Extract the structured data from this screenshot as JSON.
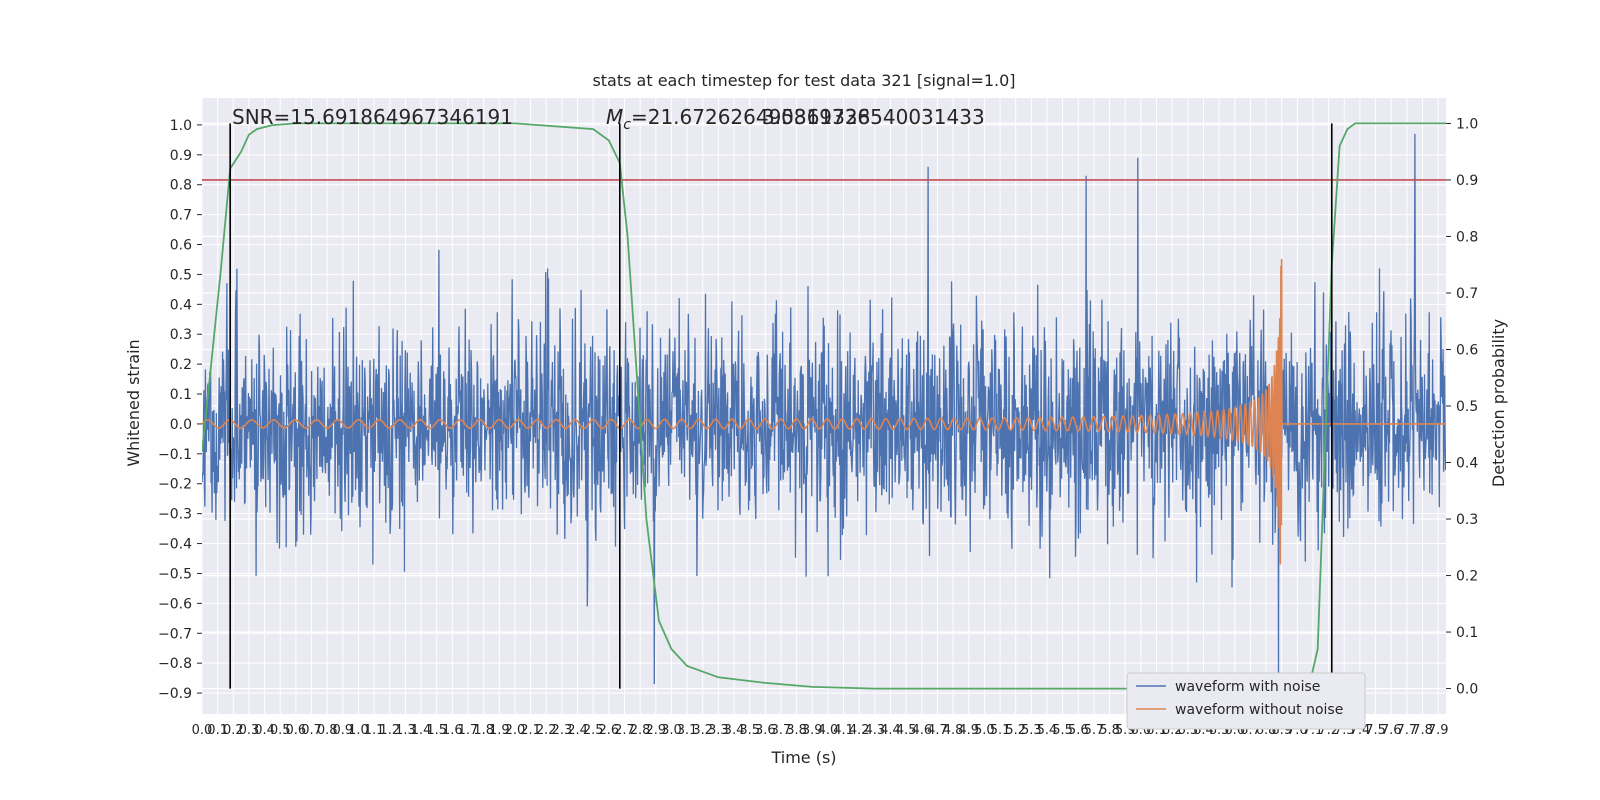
{
  "chart_data": {
    "type": "line",
    "title": "stats at each timestep for test data 321 [signal=1.0]",
    "xlabel": "Time (s)",
    "ylabel": "Whitened strain",
    "y2label": "Detection probability",
    "xlim": [
      0.0,
      7.95
    ],
    "ylim": [
      -0.97,
      1.09
    ],
    "y2lim": [
      -0.045,
      1.045
    ],
    "grid": true,
    "legend_position": "lower-right",
    "annotations": {
      "snr": "SNR=15.691864967346191",
      "mc": "M",
      "mc_sub": "c",
      "mc_value": "=21.672626495361328",
      "overlap": "3.0819736540031433"
    },
    "x_ticks": [
      "0.0",
      "0.1",
      "0.2",
      "0.3",
      "0.4",
      "0.5",
      "0.6",
      "0.7",
      "0.8",
      "0.9",
      "1.0",
      "1.1",
      "1.2",
      "1.3",
      "1.4",
      "1.5",
      "1.6",
      "1.7",
      "1.8",
      "1.9",
      "2.0",
      "2.1",
      "2.2",
      "2.3",
      "2.4",
      "2.5",
      "2.6",
      "2.7",
      "2.8",
      "2.9",
      "3.0",
      "3.1",
      "3.2",
      "3.3",
      "3.4",
      "3.5",
      "3.6",
      "3.7",
      "3.8",
      "3.9",
      "4.0",
      "4.1",
      "4.2",
      "4.3",
      "4.4",
      "4.5",
      "4.6",
      "4.7",
      "4.8",
      "4.9",
      "5.0",
      "5.1",
      "5.2",
      "5.3",
      "5.4",
      "5.5",
      "5.6",
      "5.7",
      "5.8",
      "5.9",
      "6.0",
      "6.1",
      "6.2",
      "6.3",
      "6.4",
      "6.5",
      "6.6",
      "6.7",
      "6.8",
      "6.9",
      "7.0",
      "7.1",
      "7.2",
      "7.3",
      "7.4",
      "7.5",
      "7.6",
      "7.7",
      "7.8",
      "7.9"
    ],
    "y_ticks": [
      "1.0",
      "0.9",
      "0.8",
      "0.7",
      "0.6",
      "0.5",
      "0.4",
      "0.3",
      "0.2",
      "0.1",
      "0.0",
      "−0.1",
      "−0.2",
      "−0.3",
      "−0.4",
      "−0.5",
      "−0.6",
      "−0.7",
      "−0.8",
      "−0.9"
    ],
    "y2_ticks": [
      "1.0",
      "0.9",
      "0.8",
      "0.7",
      "0.6",
      "0.5",
      "0.4",
      "0.3",
      "0.2",
      "0.1",
      "0.0"
    ],
    "threshold_y2": 0.9,
    "vertical_lines_x": [
      0.18,
      2.67,
      7.22
    ],
    "series": [
      {
        "name": "waveform with noise",
        "color": "#4c72b0",
        "kind": "noise",
        "typical_max": 0.45,
        "typical_min": -0.45,
        "peak_max": 1.0,
        "peak_min": -0.87,
        "peaks": [
          {
            "x": 6.88,
            "y": 1.0
          },
          {
            "x": 4.64,
            "y": 0.86
          },
          {
            "x": 5.65,
            "y": 0.83
          },
          {
            "x": 7.75,
            "y": 0.97
          },
          {
            "x": 5.98,
            "y": 0.89
          },
          {
            "x": 2.89,
            "y": -0.87
          },
          {
            "x": 6.88,
            "y": -0.85
          }
        ]
      },
      {
        "name": "waveform without noise",
        "color": "#dd8452",
        "kind": "chirp",
        "x_start": 0.0,
        "x_merger": 6.9,
        "amplitude_start": 0.01,
        "amplitude_merger": 0.73
      },
      {
        "name": "detection probability",
        "color": "#55a868",
        "axis": "y2",
        "x": [
          0.0,
          0.05,
          0.12,
          0.18,
          0.25,
          0.3,
          0.35,
          0.45,
          0.6,
          1.0,
          2.0,
          2.5,
          2.6,
          2.67,
          2.72,
          2.78,
          2.84,
          2.92,
          3.0,
          3.1,
          3.3,
          3.6,
          3.9,
          4.3,
          5.0,
          6.0,
          7.0,
          7.08,
          7.13,
          7.18,
          7.22,
          7.27,
          7.32,
          7.37,
          7.5,
          7.95
        ],
        "values": [
          0.42,
          0.55,
          0.74,
          0.92,
          0.95,
          0.98,
          0.99,
          0.997,
          1.0,
          1.0,
          1.0,
          0.99,
          0.97,
          0.93,
          0.8,
          0.55,
          0.3,
          0.12,
          0.07,
          0.04,
          0.02,
          0.01,
          0.003,
          0.0,
          0.0,
          0.0,
          0.0,
          0.01,
          0.07,
          0.45,
          0.75,
          0.96,
          0.99,
          1.0,
          1.0,
          1.0
        ]
      }
    ]
  }
}
